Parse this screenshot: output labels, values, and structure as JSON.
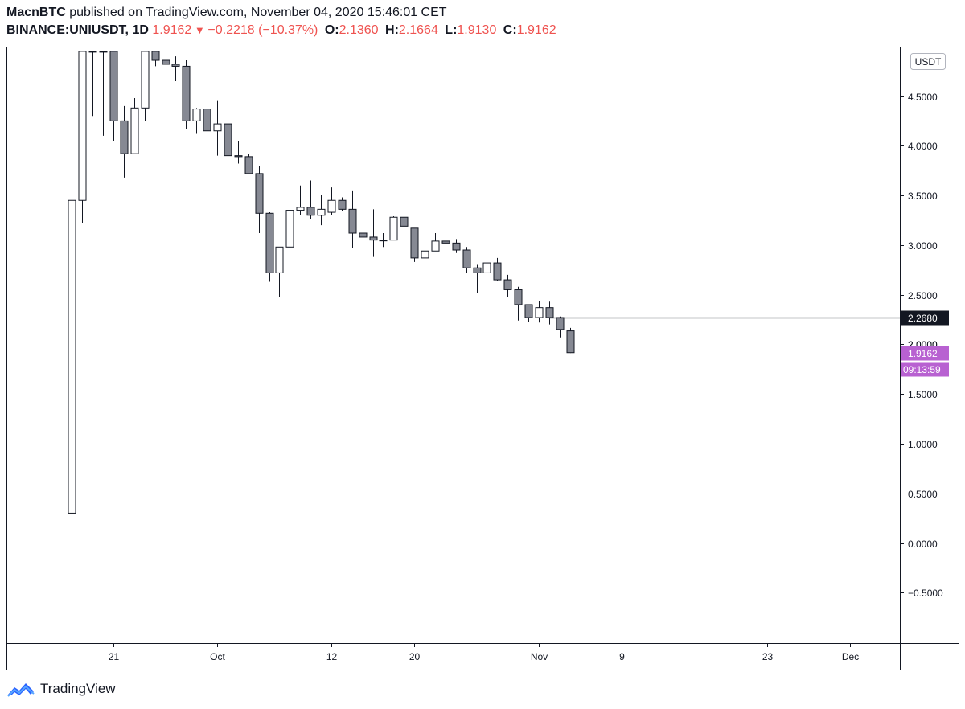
{
  "header": {
    "author": "MacnBTC",
    "published": " published on TradingView.com, November 04, 2020 15:46:01 CET",
    "symbol": "BINANCE:UNIUSDT, 1D",
    "last": "1.9162",
    "change": "−0.2218 (−10.37%)",
    "o_label": "O:",
    "o_val": "2.1360",
    "h_label": "H:",
    "h_val": "2.1664",
    "l_label": "L:",
    "l_val": "1.9130",
    "c_label": "C:",
    "c_val": "1.9162"
  },
  "footer": {
    "brand": "TradingView",
    "logo_icon": "tradingview-logo-icon"
  },
  "colors": {
    "bear": "#868993",
    "bull": "#ffffff",
    "outline": "#131722",
    "accent": "#ef5350",
    "current_price_bg": "#b861d1",
    "line_label_bg": "#131722"
  },
  "chart_data": {
    "type": "candlestick",
    "currency": "USDT",
    "ylim": [
      -1.0,
      4.95
    ],
    "y_ticks": [
      -0.5,
      0.0,
      0.5,
      1.0,
      1.5,
      2.0,
      2.5,
      3.0,
      3.5,
      4.0,
      4.5
    ],
    "y_tick_labels": [
      "−0.5000",
      "0.0000",
      "0.5000",
      "1.0000",
      "1.5000",
      "2.0000",
      "2.5000",
      "3.0000",
      "3.5000",
      "4.0000",
      "4.5000"
    ],
    "x_range": [
      "2020-09-15",
      "2020-12-10"
    ],
    "x_ticks": [
      {
        "date": "2020-09-21",
        "label": "21"
      },
      {
        "date": "2020-10-01",
        "label": "Oct"
      },
      {
        "date": "2020-10-12",
        "label": "12"
      },
      {
        "date": "2020-10-20",
        "label": "20"
      },
      {
        "date": "2020-11-01",
        "label": "Nov"
      },
      {
        "date": "2020-11-09",
        "label": "9"
      },
      {
        "date": "2020-11-23",
        "label": "23"
      },
      {
        "date": "2020-12-01",
        "label": "Dec"
      }
    ],
    "candles": [
      {
        "date": "2020-09-17",
        "o": 0.3,
        "h": 4.95,
        "l": 0.3,
        "c": 3.45
      },
      {
        "date": "2020-09-18",
        "o": 3.45,
        "h": 4.95,
        "l": 3.22,
        "c": 4.95
      },
      {
        "date": "2020-09-19",
        "o": 4.95,
        "h": 4.95,
        "l": 4.3,
        "c": 4.95
      },
      {
        "date": "2020-09-20",
        "o": 4.95,
        "h": 4.95,
        "l": 4.1,
        "c": 4.95
      },
      {
        "date": "2020-09-21",
        "o": 4.95,
        "h": 4.95,
        "l": 4.05,
        "c": 4.25
      },
      {
        "date": "2020-09-22",
        "o": 4.25,
        "h": 4.4,
        "l": 3.68,
        "c": 3.92
      },
      {
        "date": "2020-09-23",
        "o": 3.92,
        "h": 4.48,
        "l": 3.92,
        "c": 4.38
      },
      {
        "date": "2020-09-24",
        "o": 4.38,
        "h": 4.95,
        "l": 4.25,
        "c": 4.95
      },
      {
        "date": "2020-09-25",
        "o": 4.95,
        "h": 4.95,
        "l": 4.8,
        "c": 4.86
      },
      {
        "date": "2020-09-26",
        "o": 4.86,
        "h": 4.92,
        "l": 4.62,
        "c": 4.82
      },
      {
        "date": "2020-09-27",
        "o": 4.82,
        "h": 4.9,
        "l": 4.65,
        "c": 4.8
      },
      {
        "date": "2020-09-28",
        "o": 4.8,
        "h": 4.86,
        "l": 4.17,
        "c": 4.25
      },
      {
        "date": "2020-09-29",
        "o": 4.25,
        "h": 4.38,
        "l": 4.12,
        "c": 4.37
      },
      {
        "date": "2020-09-30",
        "o": 4.37,
        "h": 4.38,
        "l": 3.95,
        "c": 4.15
      },
      {
        "date": "2020-10-01",
        "o": 4.15,
        "h": 4.45,
        "l": 3.9,
        "c": 4.22
      },
      {
        "date": "2020-10-02",
        "o": 4.22,
        "h": 4.22,
        "l": 3.57,
        "c": 3.9
      },
      {
        "date": "2020-10-03",
        "o": 3.9,
        "h": 4.05,
        "l": 3.82,
        "c": 3.89
      },
      {
        "date": "2020-10-04",
        "o": 3.89,
        "h": 3.92,
        "l": 3.72,
        "c": 3.72
      },
      {
        "date": "2020-10-05",
        "o": 3.72,
        "h": 3.8,
        "l": 3.12,
        "c": 3.32
      },
      {
        "date": "2020-10-06",
        "o": 3.32,
        "h": 3.33,
        "l": 2.63,
        "c": 2.72
      },
      {
        "date": "2020-10-07",
        "o": 2.72,
        "h": 2.98,
        "l": 2.48,
        "c": 2.98
      },
      {
        "date": "2020-10-08",
        "o": 2.98,
        "h": 3.47,
        "l": 2.65,
        "c": 3.35
      },
      {
        "date": "2020-10-09",
        "o": 3.35,
        "h": 3.6,
        "l": 3.3,
        "c": 3.38
      },
      {
        "date": "2020-10-10",
        "o": 3.38,
        "h": 3.65,
        "l": 3.26,
        "c": 3.3
      },
      {
        "date": "2020-10-11",
        "o": 3.3,
        "h": 3.5,
        "l": 3.2,
        "c": 3.36
      },
      {
        "date": "2020-10-12",
        "o": 3.33,
        "h": 3.58,
        "l": 3.3,
        "c": 3.45
      },
      {
        "date": "2020-10-13",
        "o": 3.45,
        "h": 3.48,
        "l": 3.34,
        "c": 3.36
      },
      {
        "date": "2020-10-14",
        "o": 3.36,
        "h": 3.55,
        "l": 2.97,
        "c": 3.12
      },
      {
        "date": "2020-10-15",
        "o": 3.12,
        "h": 3.38,
        "l": 2.95,
        "c": 3.08
      },
      {
        "date": "2020-10-16",
        "o": 3.08,
        "h": 3.36,
        "l": 2.88,
        "c": 3.05
      },
      {
        "date": "2020-10-17",
        "o": 3.05,
        "h": 3.12,
        "l": 2.98,
        "c": 3.05
      },
      {
        "date": "2020-10-18",
        "o": 3.05,
        "h": 3.29,
        "l": 3.05,
        "c": 3.28
      },
      {
        "date": "2020-10-19",
        "o": 3.28,
        "h": 3.3,
        "l": 3.14,
        "c": 3.19
      },
      {
        "date": "2020-10-20",
        "o": 3.17,
        "h": 3.17,
        "l": 2.83,
        "c": 2.87
      },
      {
        "date": "2020-10-21",
        "o": 2.87,
        "h": 3.08,
        "l": 2.84,
        "c": 2.94
      },
      {
        "date": "2020-10-22",
        "o": 2.94,
        "h": 3.12,
        "l": 2.94,
        "c": 3.04
      },
      {
        "date": "2020-10-23",
        "o": 3.04,
        "h": 3.14,
        "l": 2.93,
        "c": 3.02
      },
      {
        "date": "2020-10-24",
        "o": 3.02,
        "h": 3.06,
        "l": 2.92,
        "c": 2.95
      },
      {
        "date": "2020-10-25",
        "o": 2.95,
        "h": 2.98,
        "l": 2.72,
        "c": 2.77
      },
      {
        "date": "2020-10-26",
        "o": 2.77,
        "h": 2.8,
        "l": 2.52,
        "c": 2.72
      },
      {
        "date": "2020-10-27",
        "o": 2.72,
        "h": 2.92,
        "l": 2.66,
        "c": 2.82
      },
      {
        "date": "2020-10-28",
        "o": 2.82,
        "h": 2.87,
        "l": 2.64,
        "c": 2.65
      },
      {
        "date": "2020-10-29",
        "o": 2.65,
        "h": 2.7,
        "l": 2.48,
        "c": 2.55
      },
      {
        "date": "2020-10-30",
        "o": 2.55,
        "h": 2.58,
        "l": 2.24,
        "c": 2.4
      },
      {
        "date": "2020-10-31",
        "o": 2.4,
        "h": 2.4,
        "l": 2.23,
        "c": 2.27
      },
      {
        "date": "2020-11-01",
        "o": 2.27,
        "h": 2.44,
        "l": 2.22,
        "c": 2.37
      },
      {
        "date": "2020-11-02",
        "o": 2.37,
        "h": 2.43,
        "l": 2.2,
        "c": 2.27
      },
      {
        "date": "2020-11-03",
        "o": 2.27,
        "h": 2.28,
        "l": 2.07,
        "c": 2.15
      },
      {
        "date": "2020-11-04",
        "o": 2.136,
        "h": 2.1664,
        "l": 1.913,
        "c": 1.9162
      }
    ],
    "horizontal_line": {
      "value": 2.268,
      "label": "2.2680",
      "from_date": "2020-11-02"
    },
    "current_price": {
      "value": 1.9162,
      "label": "1.9162",
      "countdown": "09:13:59"
    },
    "partial_tick_label": "2.0000"
  }
}
